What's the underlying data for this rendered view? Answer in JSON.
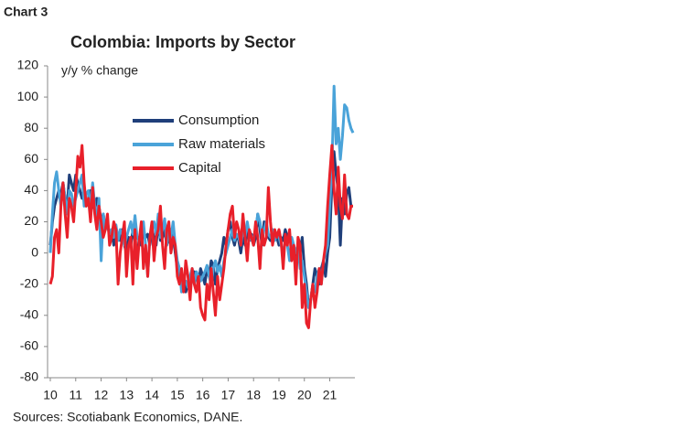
{
  "chart_data": {
    "type": "line",
    "label": "Chart 3",
    "title": "Colombia: Imports by Sector",
    "y_label": "y/y % change",
    "source": "Sources: Scotiabank Economics, DANE.",
    "categories": [
      "10",
      null,
      null,
      null,
      null,
      null,
      null,
      null,
      null,
      null,
      null,
      null,
      "11",
      null,
      null,
      null,
      null,
      null,
      null,
      null,
      null,
      null,
      null,
      null,
      "12",
      null,
      null,
      null,
      null,
      null,
      null,
      null,
      null,
      null,
      null,
      null,
      "13",
      null,
      null,
      null,
      null,
      null,
      null,
      null,
      null,
      null,
      null,
      null,
      "14",
      null,
      null,
      null,
      null,
      null,
      null,
      null,
      null,
      null,
      null,
      null,
      "15",
      null,
      null,
      null,
      null,
      null,
      null,
      null,
      null,
      null,
      null,
      null,
      "16",
      null,
      null,
      null,
      null,
      null,
      null,
      null,
      null,
      null,
      null,
      null,
      "17",
      null,
      null,
      null,
      null,
      null,
      null,
      null,
      null,
      null,
      null,
      null,
      "18",
      null,
      null,
      null,
      null,
      null,
      null,
      null,
      null,
      null,
      null,
      null,
      "19",
      null,
      null,
      null,
      null,
      null,
      null,
      null,
      null,
      null,
      null,
      null,
      "20",
      null,
      null,
      null,
      null,
      null,
      null,
      null,
      null,
      null,
      null,
      null,
      "21",
      null,
      null,
      null,
      null,
      null,
      null,
      null,
      null,
      null,
      null,
      null
    ],
    "series": [
      {
        "name": "Consumption",
        "color": "#1f3f7a",
        "values": [
          5,
          20,
          30,
          35,
          40,
          38,
          45,
          35,
          30,
          50,
          45,
          40,
          50,
          45,
          40,
          35,
          42,
          30,
          35,
          40,
          30,
          28,
          35,
          30,
          20,
          25,
          15,
          20,
          10,
          15,
          5,
          10,
          12,
          8,
          15,
          5,
          0,
          10,
          5,
          15,
          8,
          -5,
          10,
          5,
          15,
          10,
          12,
          5,
          15,
          10,
          5,
          20,
          8,
          10,
          15,
          5,
          10,
          5,
          12,
          0,
          -10,
          -15,
          -20,
          -15,
          -25,
          -20,
          -15,
          -18,
          -12,
          -15,
          -20,
          -10,
          -15,
          -20,
          -10,
          -15,
          -5,
          -8,
          -20,
          -10,
          -5,
          0,
          10,
          5,
          15,
          20,
          10,
          5,
          12,
          8,
          0,
          10,
          5,
          15,
          8,
          12,
          5,
          10,
          25,
          15,
          5,
          20,
          15,
          10,
          8,
          15,
          12,
          10,
          5,
          10,
          8,
          15,
          10,
          12,
          5,
          0,
          -5,
          5,
          0,
          10,
          -10,
          -20,
          -35,
          -30,
          -20,
          -10,
          -15,
          -20,
          -10,
          -5,
          -15,
          0,
          10,
          45,
          65,
          50,
          40,
          5,
          35,
          25,
          38,
          42,
          30,
          30
        ]
      },
      {
        "name": "Raw materials",
        "color": "#4aa3d9",
        "values": [
          0,
          25,
          45,
          52,
          40,
          30,
          45,
          35,
          25,
          40,
          38,
          30,
          35,
          40,
          45,
          50,
          30,
          38,
          40,
          28,
          45,
          30,
          22,
          35,
          -5,
          25,
          15,
          20,
          12,
          15,
          10,
          18,
          8,
          15,
          12,
          5,
          10,
          15,
          20,
          12,
          24,
          10,
          8,
          15,
          20,
          5,
          -15,
          10,
          15,
          20,
          12,
          25,
          10,
          15,
          22,
          5,
          18,
          10,
          20,
          5,
          -5,
          -10,
          -25,
          -20,
          -18,
          -22,
          -15,
          -10,
          -20,
          -12,
          -15,
          -18,
          -15,
          -12,
          -8,
          -15,
          -20,
          -10,
          -5,
          -12,
          -8,
          -15,
          -5,
          0,
          5,
          10,
          15,
          8,
          12,
          10,
          5,
          15,
          10,
          20,
          12,
          8,
          10,
          15,
          25,
          20,
          10,
          15,
          20,
          12,
          10,
          15,
          8,
          12,
          10,
          5,
          0,
          8,
          5,
          -5,
          10,
          5,
          0,
          5,
          -10,
          -5,
          -15,
          -25,
          -35,
          -30,
          -20,
          -25,
          -15,
          -10,
          -20,
          -5,
          0,
          5,
          30,
          55,
          107,
          70,
          80,
          60,
          75,
          95,
          93,
          85,
          80,
          77
        ]
      },
      {
        "name": "Capital",
        "color": "#e8202a",
        "values": [
          -20,
          -15,
          10,
          15,
          0,
          30,
          45,
          25,
          10,
          35,
          30,
          20,
          40,
          62,
          55,
          69,
          45,
          30,
          35,
          20,
          42,
          25,
          15,
          30,
          20,
          10,
          15,
          25,
          5,
          10,
          20,
          15,
          -20,
          0,
          10,
          20,
          -15,
          5,
          10,
          -20,
          15,
          -10,
          8,
          20,
          -10,
          5,
          -15,
          10,
          20,
          -5,
          10,
          15,
          30,
          5,
          -10,
          15,
          20,
          0,
          10,
          5,
          -15,
          -20,
          -10,
          -25,
          -5,
          -15,
          -30,
          -10,
          -20,
          -25,
          -15,
          -35,
          -40,
          -43,
          -20,
          -30,
          -10,
          -25,
          -40,
          -15,
          -30,
          -20,
          -10,
          5,
          15,
          25,
          30,
          10,
          20,
          15,
          5,
          25,
          10,
          -5,
          15,
          10,
          5,
          20,
          10,
          -10,
          15,
          5,
          10,
          42,
          20,
          5,
          15,
          10,
          15,
          8,
          -10,
          12,
          5,
          15,
          -5,
          5,
          -20,
          10,
          5,
          -35,
          -20,
          -45,
          -48,
          -30,
          -20,
          -35,
          -25,
          -10,
          -20,
          -5,
          5,
          30,
          50,
          69,
          40,
          25,
          55,
          30,
          22,
          50,
          25,
          22,
          30,
          30
        ]
      }
    ],
    "ylim": [
      -80,
      120
    ],
    "yticks": [
      -80,
      -60,
      -40,
      -20,
      0,
      20,
      40,
      60,
      80,
      100,
      120
    ],
    "legend": "upper center"
  }
}
